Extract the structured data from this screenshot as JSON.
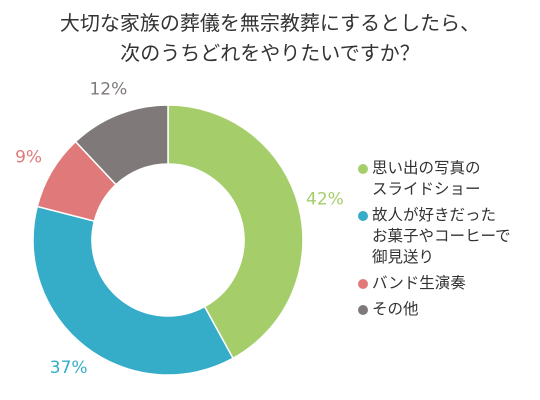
{
  "title_lines": [
    "大切な家族の葬儀を無宗教葬にするとしたら、",
    "次のうちどれをやりたいですか？"
  ],
  "chart_data": {
    "type": "pie",
    "donut": true,
    "title": "大切な家族の葬儀を無宗教葬にするとしたら、次のうちどれをやりたいですか？",
    "legend_position": "right",
    "slices": [
      {
        "label": "思い出の写真の\nスライドショー",
        "value": 42,
        "display": "42%",
        "color": "#a5cd6a"
      },
      {
        "label": "故人が好きだった\nお菓子やコーヒーで\n御見送り",
        "value": 37,
        "display": "37%",
        "color": "#35acc8"
      },
      {
        "label": "バンド生演奏",
        "value": 9,
        "display": "9%",
        "color": "#e07a7a"
      },
      {
        "label": "その他",
        "value": 12,
        "display": "12%",
        "color": "#7f7a79"
      }
    ]
  }
}
